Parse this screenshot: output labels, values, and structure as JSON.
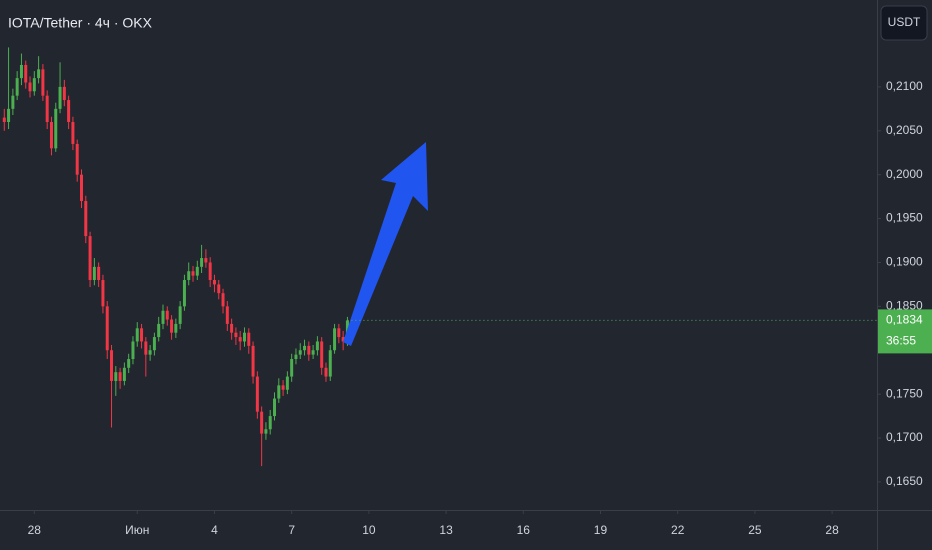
{
  "chart_data": {
    "type": "candlestick",
    "title": "IOTA/Tether · 4ч · OKX",
    "currency_button": "USDT",
    "up_color": "#4caf50",
    "down_color": "#f23645",
    "annotation_color": "#2155f0",
    "x": [
      1,
      2,
      3,
      4,
      5,
      6,
      7,
      8,
      9,
      10,
      11,
      12,
      13,
      14,
      15,
      16,
      17,
      18,
      19,
      20,
      21,
      22,
      23,
      24,
      25,
      26,
      27,
      28,
      29,
      30,
      31,
      32,
      33,
      34,
      35,
      36,
      37,
      38,
      39,
      40,
      41,
      42,
      43,
      44,
      45,
      46,
      47,
      48,
      49,
      50,
      51,
      52,
      53,
      54,
      55,
      56,
      57,
      58,
      59,
      60,
      61,
      62,
      63,
      64,
      65,
      66,
      67,
      68,
      69,
      70,
      71,
      72,
      73,
      74,
      75,
      76,
      77,
      78,
      79,
      80,
      81
    ],
    "open": [
      0.2065,
      0.206,
      0.2075,
      0.209,
      0.211,
      0.2125,
      0.2105,
      0.2095,
      0.211,
      0.212,
      0.209,
      0.206,
      0.203,
      0.2075,
      0.21,
      0.2085,
      0.206,
      0.2035,
      0.2,
      0.197,
      0.193,
      0.188,
      0.1895,
      0.188,
      0.185,
      0.18,
      0.1765,
      0.1775,
      0.1765,
      0.178,
      0.179,
      0.181,
      0.1825,
      0.181,
      0.1795,
      0.18,
      0.1815,
      0.183,
      0.1845,
      0.1835,
      0.182,
      0.183,
      0.185,
      0.188,
      0.189,
      0.1885,
      0.1895,
      0.1905,
      0.19,
      0.188,
      0.1875,
      0.1865,
      0.185,
      0.183,
      0.182,
      0.1815,
      0.181,
      0.182,
      0.1805,
      0.177,
      0.173,
      0.1705,
      0.171,
      0.1725,
      0.1745,
      0.176,
      0.1755,
      0.177,
      0.179,
      0.1795,
      0.18,
      0.1805,
      0.1795,
      0.18,
      0.181,
      0.178,
      0.177,
      0.18,
      0.1825,
      0.1815,
      0.181
    ],
    "high": [
      0.2075,
      0.2145,
      0.2098,
      0.2118,
      0.2138,
      0.213,
      0.2112,
      0.2118,
      0.2135,
      0.2126,
      0.2096,
      0.2066,
      0.2082,
      0.2128,
      0.2108,
      0.209,
      0.2066,
      0.204,
      0.2006,
      0.1976,
      0.1935,
      0.1905,
      0.19,
      0.1886,
      0.1856,
      0.1806,
      0.1782,
      0.178,
      0.1786,
      0.1796,
      0.1816,
      0.1832,
      0.183,
      0.1815,
      0.1806,
      0.182,
      0.1838,
      0.1852,
      0.185,
      0.184,
      0.1836,
      0.1856,
      0.1886,
      0.19,
      0.1896,
      0.1902,
      0.192,
      0.1915,
      0.1906,
      0.1886,
      0.188,
      0.187,
      0.1856,
      0.1836,
      0.1826,
      0.1822,
      0.1826,
      0.1825,
      0.181,
      0.1776,
      0.1736,
      0.1718,
      0.1732,
      0.1752,
      0.1768,
      0.1766,
      0.1776,
      0.1796,
      0.1802,
      0.1808,
      0.1812,
      0.181,
      0.1806,
      0.1816,
      0.1815,
      0.1786,
      0.1806,
      0.183,
      0.183,
      0.1822,
      0.1838
    ],
    "low": [
      0.205,
      0.2052,
      0.2068,
      0.2085,
      0.2102,
      0.2098,
      0.2088,
      0.209,
      0.2104,
      0.2084,
      0.2052,
      0.2022,
      0.2026,
      0.207,
      0.2078,
      0.2052,
      0.2028,
      0.1992,
      0.1962,
      0.1922,
      0.1872,
      0.1874,
      0.1872,
      0.1842,
      0.179,
      0.1712,
      0.1748,
      0.1756,
      0.176,
      0.1774,
      0.1784,
      0.1804,
      0.1802,
      0.177,
      0.1788,
      0.1794,
      0.181,
      0.1824,
      0.1828,
      0.1812,
      0.1814,
      0.1824,
      0.1845,
      0.1874,
      0.1878,
      0.188,
      0.1888,
      0.1894,
      0.1872,
      0.1866,
      0.1858,
      0.1842,
      0.1822,
      0.1812,
      0.1806,
      0.18,
      0.1804,
      0.1796,
      0.1762,
      0.1722,
      0.1668,
      0.1698,
      0.1704,
      0.172,
      0.174,
      0.1748,
      0.175,
      0.1764,
      0.1784,
      0.179,
      0.1794,
      0.1788,
      0.179,
      0.1794,
      0.1772,
      0.1764,
      0.1765,
      0.1796,
      0.1808,
      0.18,
      0.1805
    ],
    "close": [
      0.206,
      0.2075,
      0.209,
      0.211,
      0.2125,
      0.2105,
      0.2095,
      0.211,
      0.212,
      0.209,
      0.206,
      0.203,
      0.2075,
      0.21,
      0.2085,
      0.206,
      0.2035,
      0.2,
      0.197,
      0.193,
      0.188,
      0.1895,
      0.188,
      0.185,
      0.18,
      0.1765,
      0.1775,
      0.1765,
      0.178,
      0.179,
      0.181,
      0.1825,
      0.181,
      0.1795,
      0.18,
      0.1815,
      0.183,
      0.1845,
      0.1835,
      0.182,
      0.183,
      0.185,
      0.188,
      0.189,
      0.1885,
      0.1895,
      0.1905,
      0.19,
      0.188,
      0.1875,
      0.1865,
      0.185,
      0.183,
      0.182,
      0.1815,
      0.181,
      0.182,
      0.1805,
      0.177,
      0.173,
      0.1705,
      0.171,
      0.1725,
      0.1745,
      0.176,
      0.1755,
      0.177,
      0.179,
      0.1795,
      0.18,
      0.1805,
      0.1795,
      0.18,
      0.181,
      0.178,
      0.177,
      0.18,
      0.1825,
      0.1815,
      0.181,
      0.1834
    ],
    "xlim": [
      0,
      204
    ],
    "xticks": [
      {
        "value": 8,
        "label": "28"
      },
      {
        "value": 32,
        "label": "Июн"
      },
      {
        "value": 50,
        "label": "4"
      },
      {
        "value": 68,
        "label": "7"
      },
      {
        "value": 86,
        "label": "10"
      },
      {
        "value": 104,
        "label": "13"
      },
      {
        "value": 122,
        "label": "16"
      },
      {
        "value": 140,
        "label": "19"
      },
      {
        "value": 158,
        "label": "22"
      },
      {
        "value": 176,
        "label": "25"
      },
      {
        "value": 194,
        "label": "28"
      }
    ],
    "ylim": [
      0.1618,
      0.2199
    ],
    "yticks": [
      {
        "value": 0.165,
        "label": "0,1650"
      },
      {
        "value": 0.17,
        "label": "0,1700"
      },
      {
        "value": 0.175,
        "label": "0,1750"
      },
      {
        "value": 0.185,
        "label": "0,1850"
      },
      {
        "value": 0.19,
        "label": "0,1900"
      },
      {
        "value": 0.195,
        "label": "0,1950"
      },
      {
        "value": 0.2,
        "label": "0,2000"
      },
      {
        "value": 0.205,
        "label": "0,2050"
      },
      {
        "value": 0.21,
        "label": "0,2100"
      }
    ],
    "last_price": {
      "value": 0.1834,
      "label": "0,1834"
    },
    "countdown": "36:55"
  }
}
